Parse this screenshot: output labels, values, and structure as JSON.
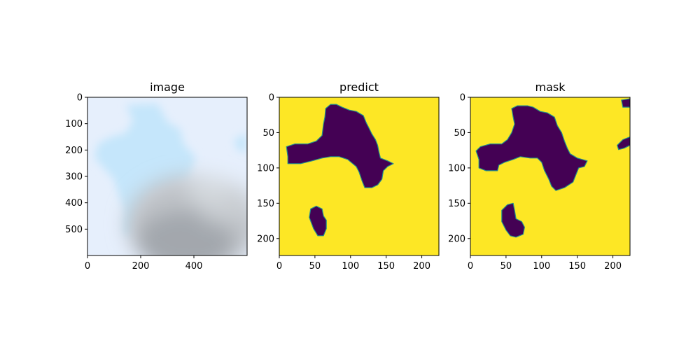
{
  "chart_data": [
    {
      "type": "image",
      "title": "image",
      "xlim": [
        0,
        600
      ],
      "ylim": [
        600,
        0
      ],
      "xticks": [
        0,
        200,
        400
      ],
      "yticks": [
        0,
        100,
        200,
        300,
        400,
        500
      ],
      "image_colors": {
        "sky": "#e6effc",
        "light_blue": "#c5e6fb",
        "cloud_dark": "#a3a7ad",
        "cloud_mid": "#bfc3c8",
        "cloud_top": "#d4d9de"
      }
    },
    {
      "type": "heatmap",
      "title": "predict",
      "xlim": [
        0,
        224
      ],
      "ylim": [
        224,
        0
      ],
      "xticks": [
        0,
        50,
        100,
        150,
        200
      ],
      "yticks": [
        0,
        50,
        100,
        150,
        200
      ],
      "colors": {
        "background": "#fde725",
        "region": "#440154",
        "edge": "#21918c"
      },
      "regions": [
        [
          [
            65,
            16
          ],
          [
            72,
            10
          ],
          [
            80,
            10
          ],
          [
            88,
            14
          ],
          [
            98,
            18
          ],
          [
            108,
            20
          ],
          [
            118,
            26
          ],
          [
            122,
            36
          ],
          [
            126,
            44
          ],
          [
            130,
            52
          ],
          [
            135,
            60
          ],
          [
            138,
            68
          ],
          [
            140,
            78
          ],
          [
            142,
            86
          ],
          [
            152,
            90
          ],
          [
            160,
            94
          ],
          [
            152,
            98
          ],
          [
            146,
            104
          ],
          [
            144,
            116
          ],
          [
            138,
            124
          ],
          [
            130,
            128
          ],
          [
            120,
            128
          ],
          [
            116,
            118
          ],
          [
            112,
            106
          ],
          [
            108,
            98
          ],
          [
            96,
            88
          ],
          [
            84,
            84
          ],
          [
            72,
            84
          ],
          [
            60,
            86
          ],
          [
            46,
            90
          ],
          [
            30,
            94
          ],
          [
            12,
            94
          ],
          [
            12,
            84
          ],
          [
            10,
            70
          ],
          [
            22,
            66
          ],
          [
            40,
            66
          ],
          [
            52,
            62
          ],
          [
            60,
            54
          ],
          [
            62,
            38
          ],
          [
            64,
            28
          ]
        ],
        [
          [
            44,
            158
          ],
          [
            52,
            154
          ],
          [
            60,
            158
          ],
          [
            62,
            168
          ],
          [
            66,
            174
          ],
          [
            66,
            186
          ],
          [
            62,
            196
          ],
          [
            54,
            196
          ],
          [
            48,
            186
          ],
          [
            42,
            170
          ]
        ]
      ]
    },
    {
      "type": "heatmap",
      "title": "mask",
      "xlim": [
        0,
        224
      ],
      "ylim": [
        224,
        0
      ],
      "xticks": [
        0,
        50,
        100,
        150,
        200
      ],
      "yticks": [
        0,
        50,
        100,
        150,
        200
      ],
      "colors": {
        "background": "#fde725",
        "region": "#440154",
        "edge": "#21918c"
      },
      "regions": [
        [
          [
            58,
            16
          ],
          [
            66,
            12
          ],
          [
            80,
            12
          ],
          [
            88,
            14
          ],
          [
            98,
            20
          ],
          [
            108,
            22
          ],
          [
            118,
            28
          ],
          [
            122,
            40
          ],
          [
            128,
            50
          ],
          [
            132,
            62
          ],
          [
            136,
            72
          ],
          [
            140,
            80
          ],
          [
            150,
            86
          ],
          [
            164,
            90
          ],
          [
            160,
            98
          ],
          [
            152,
            100
          ],
          [
            148,
            110
          ],
          [
            144,
            120
          ],
          [
            132,
            128
          ],
          [
            120,
            132
          ],
          [
            114,
            126
          ],
          [
            110,
            116
          ],
          [
            104,
            104
          ],
          [
            100,
            92
          ],
          [
            94,
            86
          ],
          [
            84,
            86
          ],
          [
            70,
            84
          ],
          [
            60,
            88
          ],
          [
            48,
            92
          ],
          [
            40,
            96
          ],
          [
            38,
            104
          ],
          [
            22,
            104
          ],
          [
            12,
            100
          ],
          [
            12,
            88
          ],
          [
            8,
            76
          ],
          [
            14,
            70
          ],
          [
            28,
            66
          ],
          [
            44,
            66
          ],
          [
            52,
            60
          ],
          [
            58,
            50
          ],
          [
            62,
            38
          ],
          [
            60,
            28
          ]
        ],
        [
          [
            44,
            160
          ],
          [
            52,
            152
          ],
          [
            60,
            150
          ],
          [
            62,
            160
          ],
          [
            64,
            172
          ],
          [
            72,
            176
          ],
          [
            76,
            184
          ],
          [
            74,
            194
          ],
          [
            64,
            198
          ],
          [
            56,
            196
          ],
          [
            50,
            188
          ],
          [
            44,
            176
          ]
        ],
        [
          [
            212,
            4
          ],
          [
            224,
            2
          ],
          [
            224,
            14
          ],
          [
            214,
            14
          ]
        ],
        [
          [
            214,
            60
          ],
          [
            224,
            56
          ],
          [
            224,
            68
          ],
          [
            216,
            72
          ],
          [
            208,
            74
          ],
          [
            206,
            68
          ]
        ]
      ]
    }
  ]
}
